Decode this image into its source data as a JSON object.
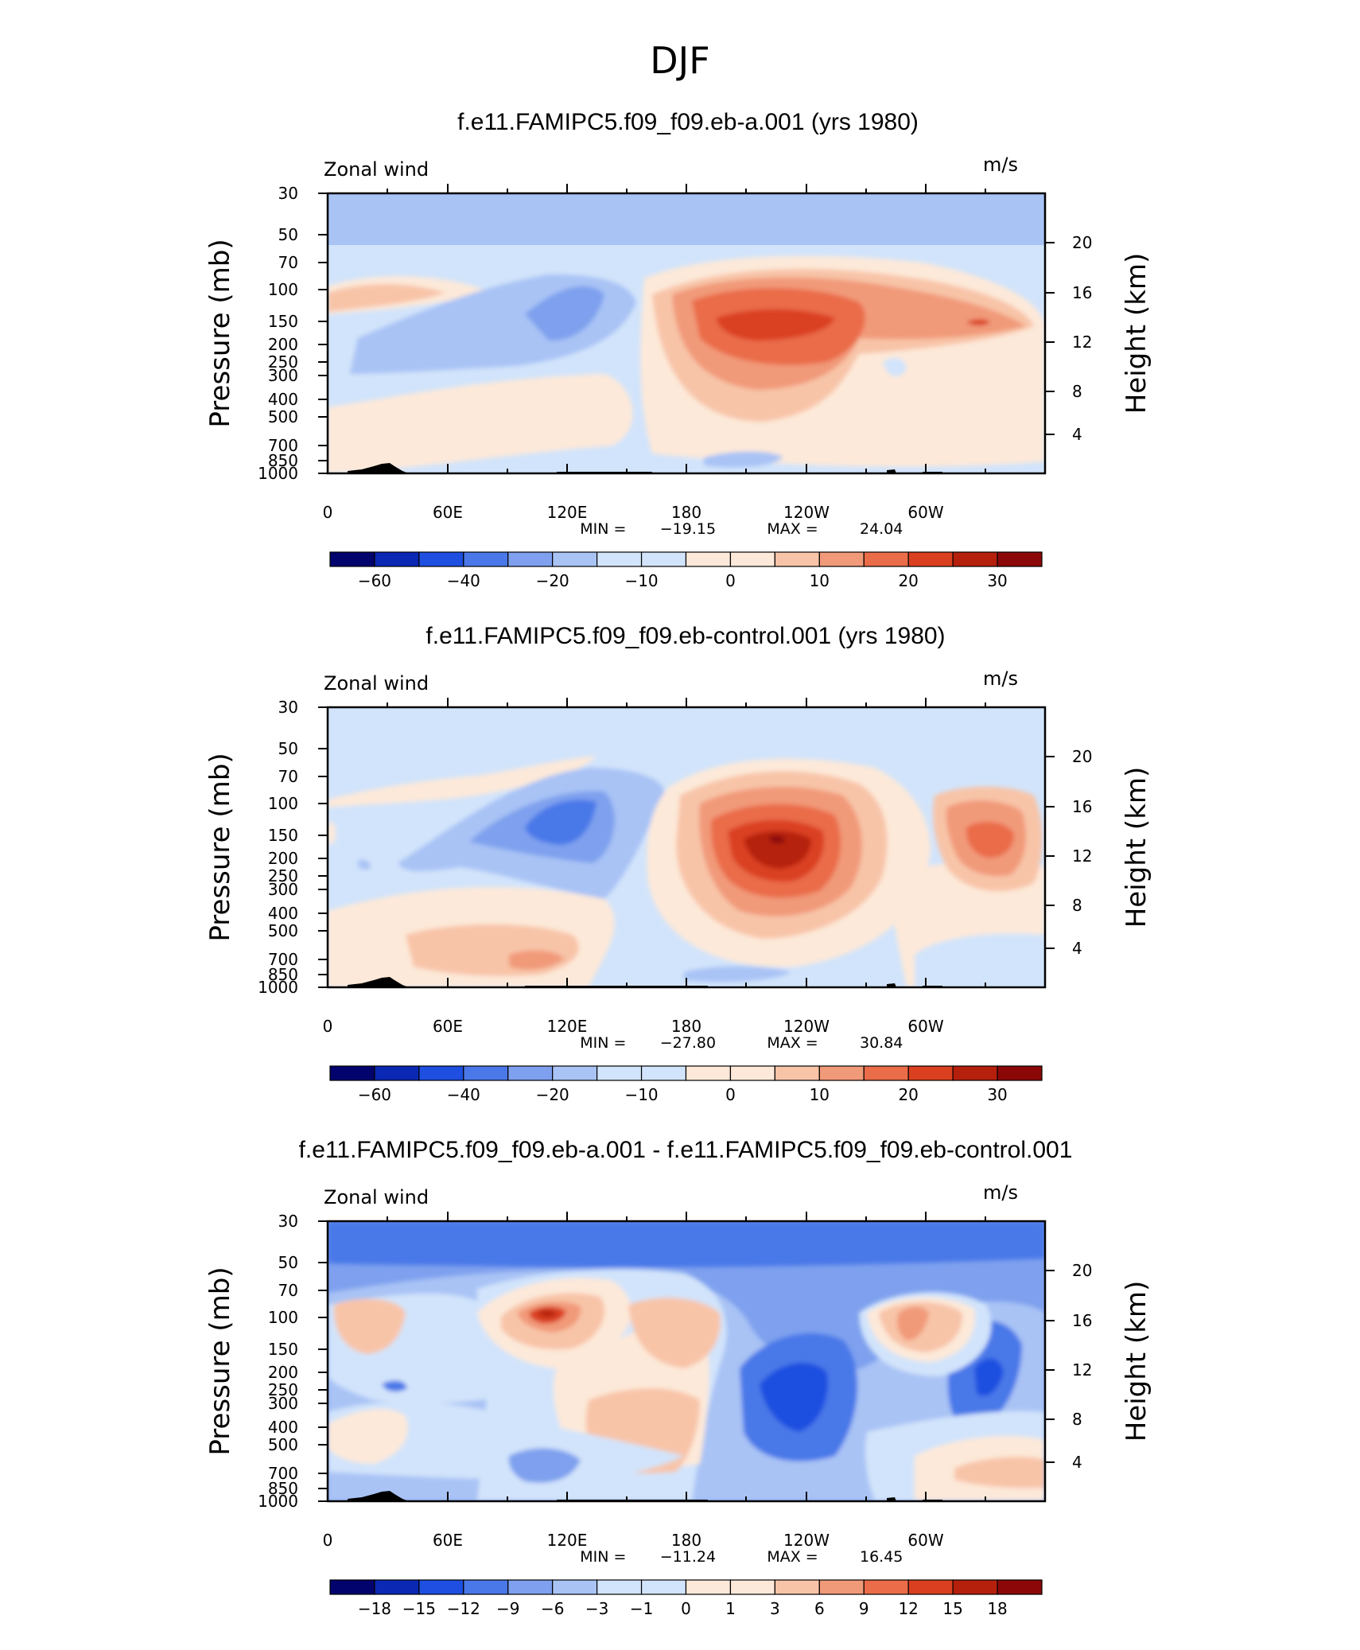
{
  "figure_title": "DJF",
  "colors": {
    "neg": [
      "#03036e",
      "#0a28b4",
      "#1e4fe0",
      "#4a78e8",
      "#7ea0ee",
      "#a9c3f5",
      "#d2e4fb"
    ],
    "pos": [
      "#fde9d9",
      "#f8c4a8",
      "#f19a79",
      "#ea6c48",
      "#da4020",
      "#b5200c",
      "#8c0808"
    ],
    "terrain": "#000000"
  },
  "chart_data": [
    {
      "type": "contour",
      "title": "f.e11.FAMIPC5.f09_f09.eb-a.001 (yrs 1980)",
      "variable": "Zonal wind",
      "units": "m/s",
      "ylabel": "Pressure (mb)",
      "ylabel_right": "Height (km)",
      "x_ticks": [
        "0",
        "60E",
        "120E",
        "180",
        "120W",
        "60W"
      ],
      "y_ticks": [
        "30",
        "50",
        "70",
        "100",
        "150",
        "200",
        "250",
        "300",
        "400",
        "500",
        "700",
        "850",
        "1000"
      ],
      "height_ticks": [
        "20",
        "16",
        "12",
        "8",
        "4"
      ],
      "stats": {
        "min_label": "MIN =",
        "min": "−19.15",
        "max_label": "MAX =",
        "max": "24.04"
      },
      "colorbar_labels": [
        "−60",
        "−40",
        "−20",
        "−10",
        "0",
        "10",
        "20",
        "30"
      ],
      "range": [
        -19.15,
        24.04
      ]
    },
    {
      "type": "contour",
      "title": "f.e11.FAMIPC5.f09_f09.eb-control.001 (yrs 1980)",
      "variable": "Zonal wind",
      "units": "m/s",
      "ylabel": "Pressure (mb)",
      "ylabel_right": "Height (km)",
      "x_ticks": [
        "0",
        "60E",
        "120E",
        "180",
        "120W",
        "60W"
      ],
      "y_ticks": [
        "30",
        "50",
        "70",
        "100",
        "150",
        "200",
        "250",
        "300",
        "400",
        "500",
        "700",
        "850",
        "1000"
      ],
      "height_ticks": [
        "20",
        "16",
        "12",
        "8",
        "4"
      ],
      "stats": {
        "min_label": "MIN =",
        "min": "−27.80",
        "max_label": "MAX =",
        "max": "30.84"
      },
      "colorbar_labels": [
        "−60",
        "−40",
        "−20",
        "−10",
        "0",
        "10",
        "20",
        "30"
      ],
      "range": [
        -27.8,
        30.84
      ]
    },
    {
      "type": "contour",
      "title": "f.e11.FAMIPC5.f09_f09.eb-a.001 - f.e11.FAMIPC5.f09_f09.eb-control.001",
      "variable": "Zonal wind",
      "units": "m/s",
      "ylabel": "Pressure (mb)",
      "ylabel_right": "Height (km)",
      "x_ticks": [
        "0",
        "60E",
        "120E",
        "180",
        "120W",
        "60W"
      ],
      "y_ticks": [
        "30",
        "50",
        "70",
        "100",
        "150",
        "200",
        "250",
        "300",
        "400",
        "500",
        "700",
        "850",
        "1000"
      ],
      "height_ticks": [
        "20",
        "16",
        "12",
        "8",
        "4"
      ],
      "stats": {
        "min_label": "MIN =",
        "min": "−11.24",
        "max_label": "MAX =",
        "max": "16.45"
      },
      "colorbar_labels": [
        "−18",
        "−15",
        "−12",
        "−9",
        "−6",
        "−3",
        "−1",
        "0",
        "1",
        "3",
        "6",
        "9",
        "12",
        "15",
        "18"
      ],
      "range": [
        -11.24,
        16.45
      ]
    }
  ]
}
